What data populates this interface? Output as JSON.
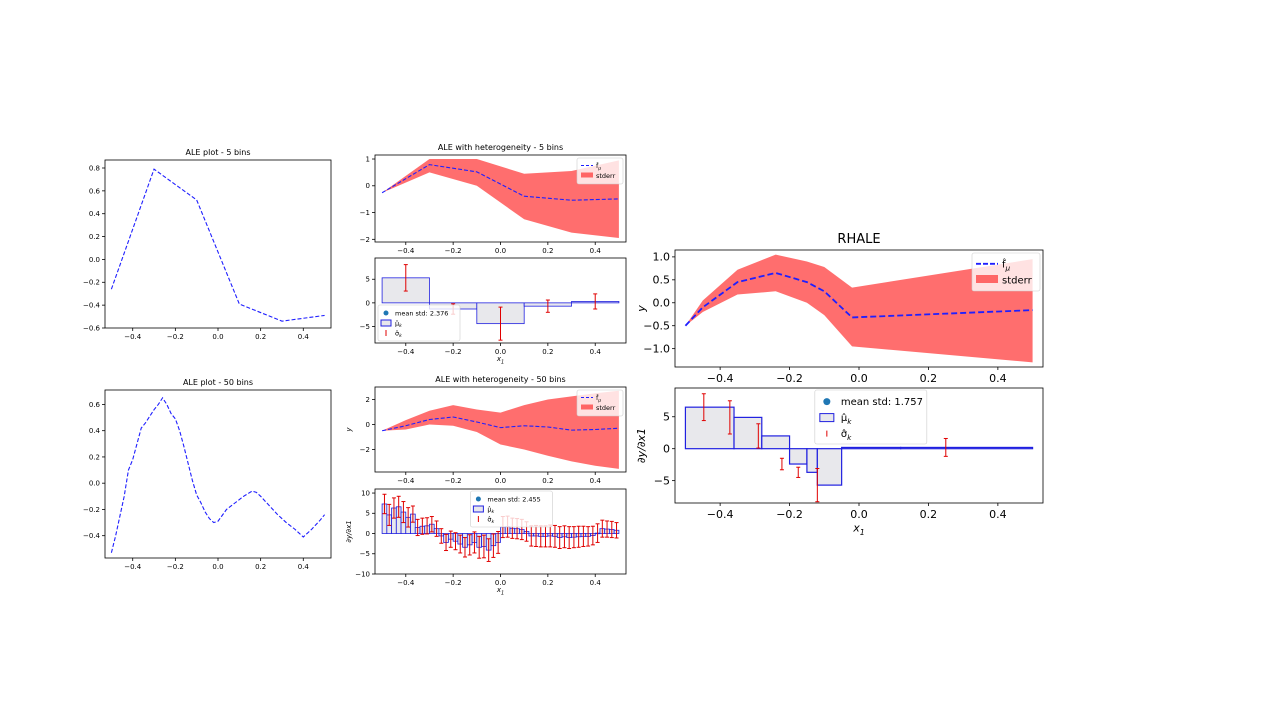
{
  "colors": {
    "line": "#1f1fff",
    "band": "#ff6666",
    "bar_edge": "#2020e0",
    "bar_fill": "#e8e8ec",
    "errorbar": "#e00000",
    "mean_dot": "#1f77b4",
    "axis": "#000000"
  },
  "chart_data": [
    {
      "id": "ale5",
      "type": "line",
      "title": "ALE plot - 5 bins",
      "xlabel": "",
      "ylabel": "",
      "xlim": [
        -0.53,
        0.53
      ],
      "ylim": [
        -0.6,
        0.87
      ],
      "xticks": [
        -0.4,
        -0.2,
        0.0,
        0.2,
        0.4
      ],
      "yticks": [
        -0.6,
        -0.4,
        -0.2,
        0.0,
        0.2,
        0.4,
        0.6,
        0.8
      ],
      "x": [
        -0.5,
        -0.3,
        -0.1,
        0.1,
        0.3,
        0.5
      ],
      "y": [
        -0.26,
        0.79,
        0.52,
        -0.39,
        -0.54,
        -0.49
      ]
    },
    {
      "id": "ale50",
      "type": "line",
      "title": "ALE plot - 50 bins",
      "xlabel": "",
      "ylabel": "",
      "xlim": [
        -0.53,
        0.53
      ],
      "ylim": [
        -0.57,
        0.71
      ],
      "xticks": [
        -0.4,
        -0.2,
        0.0,
        0.2,
        0.4
      ],
      "yticks": [
        -0.4,
        -0.2,
        0.0,
        0.2,
        0.4,
        0.6
      ],
      "x": [
        -0.5,
        -0.48,
        -0.46,
        -0.44,
        -0.42,
        -0.4,
        -0.38,
        -0.36,
        -0.34,
        -0.32,
        -0.3,
        -0.28,
        -0.26,
        -0.24,
        -0.22,
        -0.2,
        -0.18,
        -0.16,
        -0.14,
        -0.12,
        -0.1,
        -0.08,
        -0.06,
        -0.04,
        -0.02,
        0.0,
        0.04,
        0.08,
        0.12,
        0.16,
        0.18,
        0.2,
        0.24,
        0.28,
        0.32,
        0.36,
        0.4,
        0.44,
        0.48,
        0.5
      ],
      "y": [
        -0.53,
        -0.4,
        -0.25,
        -0.1,
        0.1,
        0.18,
        0.3,
        0.42,
        0.46,
        0.51,
        0.56,
        0.6,
        0.65,
        0.6,
        0.53,
        0.49,
        0.4,
        0.28,
        0.15,
        0.02,
        -0.09,
        -0.15,
        -0.22,
        -0.27,
        -0.3,
        -0.29,
        -0.2,
        -0.15,
        -0.1,
        -0.06,
        -0.07,
        -0.1,
        -0.17,
        -0.24,
        -0.3,
        -0.35,
        -0.41,
        -0.35,
        -0.28,
        -0.24
      ]
    },
    {
      "id": "het5_top",
      "type": "area",
      "title": "ALE with heterogeneity - 5 bins",
      "xlabel": "",
      "ylabel": "",
      "xlim": [
        -0.53,
        0.53
      ],
      "ylim": [
        -2.1,
        1.15
      ],
      "xticks": [
        -0.4,
        -0.2,
        0.0,
        0.2,
        0.4
      ],
      "yticks": [
        -2,
        -1,
        0,
        1
      ],
      "x": [
        -0.5,
        -0.3,
        -0.1,
        0.1,
        0.3,
        0.5
      ],
      "mean": [
        -0.26,
        0.79,
        0.52,
        -0.39,
        -0.54,
        -0.49
      ],
      "upper": [
        -0.26,
        1.0,
        1.0,
        0.45,
        0.55,
        0.95
      ],
      "lower": [
        -0.26,
        0.5,
        0.0,
        -1.25,
        -1.75,
        -1.95
      ],
      "legend": [
        "$\\hat{f}_{\\mu}$",
        "stderr"
      ],
      "legend_position": "upper right"
    },
    {
      "id": "het5_bot",
      "type": "bar",
      "title": "",
      "xlabel": "x1",
      "ylabel": "",
      "xlim": [
        -0.53,
        0.53
      ],
      "ylim": [
        -8.5,
        9.5
      ],
      "xticks": [
        -0.4,
        -0.2,
        0.0,
        0.2,
        0.4
      ],
      "yticks": [
        -5,
        0,
        5
      ],
      "edges": [
        -0.5,
        -0.3,
        -0.1,
        0.1,
        0.3,
        0.5
      ],
      "values": [
        5.3,
        -1.3,
        -4.4,
        -0.7,
        0.3
      ],
      "errors": [
        2.8,
        1.1,
        3.5,
        1.3,
        1.6
      ],
      "legend": [
        "mean std: 2.376",
        "$\\hat{\\mu}_k$",
        "$\\hat{\\sigma}_k$"
      ],
      "legend_position": "lower left"
    },
    {
      "id": "het50_top",
      "type": "area",
      "title": "ALE with heterogeneity - 50 bins",
      "xlabel": "",
      "ylabel": "y",
      "xlim": [
        -0.53,
        0.53
      ],
      "ylim": [
        -3.8,
        3.0
      ],
      "xticks": [
        -0.4,
        -0.2,
        0.0,
        0.2,
        0.4
      ],
      "yticks": [
        -2,
        0,
        2
      ],
      "x": [
        -0.5,
        -0.4,
        -0.3,
        -0.2,
        -0.1,
        0.0,
        0.1,
        0.2,
        0.3,
        0.4,
        0.5
      ],
      "mean": [
        -0.5,
        -0.1,
        0.4,
        0.6,
        0.2,
        -0.25,
        -0.1,
        -0.2,
        -0.45,
        -0.4,
        -0.3
      ],
      "upper": [
        -0.5,
        0.35,
        1.1,
        1.55,
        1.2,
        0.95,
        1.55,
        2.0,
        2.25,
        2.5,
        2.7
      ],
      "lower": [
        -0.5,
        -0.4,
        0.0,
        -0.1,
        -0.6,
        -1.6,
        -2.0,
        -2.5,
        -2.95,
        -3.3,
        -3.55
      ],
      "legend": [
        "$\\hat{f}_{\\mu}$",
        "stderr"
      ],
      "legend_position": "upper right"
    },
    {
      "id": "het50_bot",
      "type": "bar",
      "title": "",
      "xlabel": "x1",
      "ylabel": "∂y/∂x1",
      "xlim": [
        -0.53,
        0.53
      ],
      "ylim": [
        -10,
        11
      ],
      "xticks": [
        -0.4,
        -0.2,
        0.0,
        0.2,
        0.4
      ],
      "yticks": [
        -10,
        -5,
        0,
        5,
        10
      ],
      "edges_start": -0.5,
      "bin_width": 0.02,
      "values": [
        7.3,
        4.6,
        6.3,
        6.6,
        5.3,
        4.0,
        4.8,
        1.5,
        1.8,
        1.9,
        2.3,
        1.2,
        -0.6,
        -2.2,
        -1.4,
        -1.9,
        -2.6,
        -3.4,
        -2.8,
        -2.2,
        -3.4,
        -3.2,
        -4.1,
        -3.0,
        -2.2,
        1.6,
        1.7,
        1.3,
        1.2,
        1.0,
        0.5,
        -0.6,
        -0.6,
        -0.7,
        -0.7,
        -0.6,
        -0.7,
        -1.0,
        -0.8,
        -1.0,
        -0.9,
        -0.8,
        -0.7,
        -0.7,
        -0.5,
        0.1,
        1.2,
        1.1,
        1.0,
        0.8
      ],
      "errors": [
        2.4,
        2.6,
        2.5,
        2.6,
        2.6,
        2.4,
        2.0,
        2.0,
        2.0,
        2.0,
        1.9,
        1.9,
        1.8,
        2.0,
        2.0,
        2.1,
        2.2,
        2.4,
        2.5,
        2.6,
        2.7,
        2.8,
        2.8,
        2.9,
        2.7,
        2.6,
        2.6,
        2.5,
        2.5,
        2.5,
        2.4,
        2.5,
        2.6,
        2.6,
        2.6,
        2.7,
        2.7,
        2.7,
        2.7,
        2.7,
        2.6,
        2.6,
        2.5,
        2.4,
        2.3,
        2.3,
        2.1,
        2.0,
        2.0,
        1.9
      ],
      "legend": [
        "mean std: 2.455",
        "$\\hat{\\mu}_k$",
        "$\\hat{\\sigma}_k$"
      ],
      "legend_position": "upper center"
    },
    {
      "id": "rhale_top",
      "type": "area",
      "title": "RHALE",
      "xlabel": "",
      "ylabel": "y",
      "xlim": [
        -0.53,
        0.53
      ],
      "ylim": [
        -1.4,
        1.15
      ],
      "xticks": [
        -0.4,
        -0.2,
        0.0,
        0.2,
        0.4
      ],
      "yticks": [
        -1.0,
        -0.5,
        0.0,
        0.5,
        1.0
      ],
      "x": [
        -0.5,
        -0.45,
        -0.35,
        -0.24,
        -0.15,
        -0.1,
        -0.02,
        0.5
      ],
      "mean": [
        -0.5,
        -0.1,
        0.45,
        0.65,
        0.45,
        0.25,
        -0.32,
        -0.16
      ],
      "upper": [
        -0.5,
        0.05,
        0.72,
        1.05,
        0.9,
        0.78,
        0.33,
        0.95
      ],
      "lower": [
        -0.5,
        -0.2,
        0.18,
        0.25,
        0.0,
        -0.27,
        -0.95,
        -1.3
      ],
      "legend": [
        "$\\hat{f}_{\\mu}$",
        "stderr"
      ],
      "legend_position": "upper right"
    },
    {
      "id": "rhale_bot",
      "type": "bar",
      "title": "",
      "xlabel": "x1",
      "ylabel": "∂y/∂x1",
      "xlim": [
        -0.53,
        0.53
      ],
      "ylim": [
        -8.5,
        9.5
      ],
      "xticks": [
        -0.4,
        -0.2,
        0.0,
        0.2,
        0.4
      ],
      "yticks": [
        -5,
        0,
        5
      ],
      "edges": [
        -0.5,
        -0.36,
        -0.28,
        -0.2,
        -0.15,
        -0.12,
        -0.05,
        0.12,
        0.5
      ],
      "values": [
        6.5,
        4.9,
        2.0,
        -2.4,
        -3.7,
        -5.7,
        0.2,
        0.2
      ],
      "errors": [
        2.1,
        2.6,
        1.9,
        0.9,
        0.8,
        2.6,
        0.0,
        1.4
      ],
      "error_x": [
        -0.447,
        -0.372,
        -0.29,
        -0.222,
        -0.175,
        -0.12,
        null,
        0.25
      ],
      "legend": [
        "mean std: 1.757",
        "$\\hat{\\mu}_k$",
        "$\\hat{\\sigma}_k$"
      ],
      "legend_position": "upper center"
    }
  ]
}
